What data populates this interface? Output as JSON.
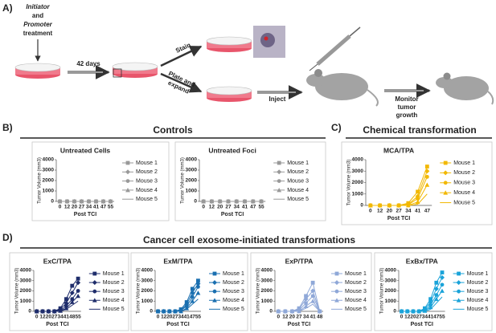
{
  "panel_a": {
    "label": "A)",
    "treatment": [
      "Initiator",
      "and",
      "Promoter",
      "treatment"
    ],
    "days": "42 days",
    "stain": "Stain",
    "plate": [
      "Plate and",
      "expand"
    ],
    "inject": "Inject",
    "monitor": [
      "Monitor",
      "tumor",
      "growth"
    ]
  },
  "panels": [
    {
      "label": "B)",
      "heading": "Controls"
    },
    {
      "label": "C)",
      "heading": "Chemical transformation"
    },
    {
      "label": "D)",
      "heading": "Cancer cell exosome-initiated transformations"
    }
  ],
  "chart_data": [
    {
      "type": "line",
      "title": "Untreated Cells",
      "x_label": "Post TCI",
      "y_label": "Tumor Volume (mm3)",
      "categories": [
        0,
        12,
        20,
        27,
        34,
        41,
        47,
        55
      ],
      "ylim": [
        0,
        4000
      ],
      "yticks": [
        0,
        1000,
        2000,
        3000,
        4000
      ],
      "series": [
        {
          "name": "Mouse 1",
          "color": "#999999",
          "values": [
            0,
            0,
            0,
            0,
            0,
            0,
            0,
            0
          ]
        },
        {
          "name": "Mouse 2",
          "color": "#999999",
          "values": [
            0,
            0,
            0,
            0,
            0,
            0,
            0,
            0
          ]
        },
        {
          "name": "Mouse 3",
          "color": "#999999",
          "values": [
            0,
            0,
            0,
            0,
            0,
            0,
            0,
            0
          ]
        },
        {
          "name": "Mouse 4",
          "color": "#999999",
          "values": [
            0,
            0,
            0,
            0,
            0,
            0,
            0,
            0
          ]
        },
        {
          "name": "Mouse 5",
          "color": "#999999",
          "values": [
            0,
            0,
            0,
            0,
            0,
            0,
            0,
            0
          ]
        }
      ]
    },
    {
      "type": "line",
      "title": "Untreated Foci",
      "x_label": "Post TCI",
      "y_label": "Tumor Volume (mm3)",
      "categories": [
        0,
        12,
        20,
        27,
        34,
        41,
        47,
        55
      ],
      "ylim": [
        0,
        4000
      ],
      "yticks": [
        0,
        1000,
        2000,
        3000,
        4000
      ],
      "series": [
        {
          "name": "Mouse 1",
          "color": "#999999",
          "values": [
            0,
            0,
            0,
            0,
            0,
            0,
            0,
            0
          ]
        },
        {
          "name": "Mouse 2",
          "color": "#999999",
          "values": [
            0,
            0,
            0,
            0,
            0,
            0,
            0,
            0
          ]
        },
        {
          "name": "Mouse 3",
          "color": "#999999",
          "values": [
            0,
            0,
            0,
            0,
            0,
            0,
            0,
            0
          ]
        },
        {
          "name": "Mouse 4",
          "color": "#999999",
          "values": [
            0,
            0,
            0,
            0,
            0,
            0,
            0,
            0
          ]
        },
        {
          "name": "Mouse 5",
          "color": "#999999",
          "values": [
            0,
            0,
            0,
            0,
            0,
            0,
            0,
            0
          ]
        }
      ]
    },
    {
      "type": "line",
      "title": "MCA/TPA",
      "x_label": "Post TCI",
      "y_label": "Tumor Volume (mm3)",
      "categories": [
        0,
        12,
        20,
        27,
        34,
        41,
        47
      ],
      "ylim": [
        0,
        4000
      ],
      "yticks": [
        0,
        1000,
        2000,
        3000,
        4000
      ],
      "series": [
        {
          "name": "Mouse 1",
          "color": "#f2b800",
          "values": [
            0,
            0,
            0,
            0,
            200,
            1200,
            3400
          ]
        },
        {
          "name": "Mouse 2",
          "color": "#f2b800",
          "values": [
            0,
            0,
            0,
            0,
            100,
            800,
            3000
          ]
        },
        {
          "name": "Mouse 3",
          "color": "#f2b800",
          "values": [
            0,
            0,
            0,
            0,
            50,
            600,
            2500
          ]
        },
        {
          "name": "Mouse 4",
          "color": "#f2b800",
          "values": [
            0,
            0,
            0,
            0,
            0,
            300,
            1800
          ]
        },
        {
          "name": "Mouse 5",
          "color": "#f2b800",
          "values": [
            0,
            0,
            0,
            0,
            0,
            100,
            1000
          ]
        }
      ]
    },
    {
      "type": "line",
      "title": "ExC/TPA",
      "x_label": "Post TCI",
      "y_label": "Tumor Volume (mm3)",
      "categories": [
        0,
        12,
        20,
        27,
        34,
        41,
        48,
        55
      ],
      "ylim": [
        0,
        4000
      ],
      "yticks": [
        0,
        1000,
        2000,
        3000,
        4000
      ],
      "series": [
        {
          "name": "Mouse 1",
          "color": "#1f2d6b",
          "values": [
            0,
            0,
            0,
            0,
            300,
            1200,
            2500,
            3200
          ]
        },
        {
          "name": "Mouse 2",
          "color": "#1f2d6b",
          "values": [
            0,
            0,
            0,
            0,
            200,
            800,
            1800,
            2800
          ]
        },
        {
          "name": "Mouse 3",
          "color": "#1f2d6b",
          "values": [
            0,
            0,
            0,
            0,
            100,
            500,
            1200,
            2000
          ]
        },
        {
          "name": "Mouse 4",
          "color": "#1f2d6b",
          "values": [
            0,
            0,
            0,
            0,
            50,
            300,
            900,
            1500
          ]
        },
        {
          "name": "Mouse 5",
          "color": "#1f2d6b",
          "values": [
            0,
            0,
            0,
            0,
            0,
            200,
            600,
            1000
          ]
        }
      ]
    },
    {
      "type": "line",
      "title": "ExM/TPA",
      "x_label": "Post TCI",
      "y_label": "Tumor Volume (mm3)",
      "categories": [
        0,
        12,
        20,
        27,
        34,
        41,
        47,
        55
      ],
      "ylim": [
        0,
        4000
      ],
      "yticks": [
        0,
        1000,
        2000,
        3000,
        4000
      ],
      "series": [
        {
          "name": "Mouse 1",
          "color": "#1a6fb0",
          "values": [
            0,
            0,
            0,
            0,
            200,
            900,
            2200,
            3000
          ]
        },
        {
          "name": "Mouse 2",
          "color": "#1a6fb0",
          "values": [
            0,
            0,
            0,
            0,
            100,
            700,
            1800,
            2700
          ]
        },
        {
          "name": "Mouse 3",
          "color": "#1a6fb0",
          "values": [
            0,
            0,
            0,
            0,
            100,
            500,
            1400,
            2400
          ]
        },
        {
          "name": "Mouse 4",
          "color": "#1a6fb0",
          "values": [
            0,
            0,
            0,
            0,
            0,
            300,
            1000,
            1800
          ]
        },
        {
          "name": "Mouse 5",
          "color": "#1a6fb0",
          "values": [
            0,
            0,
            0,
            0,
            0,
            200,
            700,
            1200
          ]
        }
      ]
    },
    {
      "type": "line",
      "title": "ExP/TPA",
      "x_label": "Post TCI",
      "y_label": "Tumor Volume (mm3)",
      "categories": [
        0,
        12,
        20,
        27,
        34,
        41,
        48
      ],
      "ylim": [
        0,
        4000
      ],
      "yticks": [
        0,
        1000,
        2000,
        3000,
        4000
      ],
      "series": [
        {
          "name": "Mouse 1",
          "color": "#8fa8d8",
          "values": [
            0,
            0,
            0,
            300,
            1500,
            2800,
            0
          ]
        },
        {
          "name": "Mouse 2",
          "color": "#8fa8d8",
          "values": [
            0,
            0,
            0,
            200,
            1200,
            2000,
            0
          ]
        },
        {
          "name": "Mouse 3",
          "color": "#8fa8d8",
          "values": [
            0,
            0,
            0,
            100,
            800,
            1500,
            0
          ]
        },
        {
          "name": "Mouse 4",
          "color": "#8fa8d8",
          "values": [
            0,
            0,
            0,
            0,
            500,
            1000,
            0
          ]
        },
        {
          "name": "Mouse 5",
          "color": "#8fa8d8",
          "values": [
            0,
            0,
            0,
            0,
            300,
            700,
            0
          ]
        }
      ]
    },
    {
      "type": "line",
      "title": "ExBx/TPA",
      "x_label": "Post TCI",
      "y_label": "Tumor Volume (mm3)",
      "categories": [
        0,
        12,
        20,
        27,
        34,
        41,
        47,
        55
      ],
      "ylim": [
        0,
        4000
      ],
      "yticks": [
        0,
        1000,
        2000,
        3000,
        4000
      ],
      "series": [
        {
          "name": "Mouse 1",
          "color": "#1aa3d9",
          "values": [
            0,
            0,
            0,
            0,
            300,
            1200,
            2800,
            3800
          ]
        },
        {
          "name": "Mouse 2",
          "color": "#1aa3d9",
          "values": [
            0,
            0,
            0,
            0,
            200,
            900,
            2200,
            3300
          ]
        },
        {
          "name": "Mouse 3",
          "color": "#1aa3d9",
          "values": [
            0,
            0,
            0,
            0,
            100,
            600,
            1600,
            2600
          ]
        },
        {
          "name": "Mouse 4",
          "color": "#1aa3d9",
          "values": [
            0,
            0,
            0,
            0,
            50,
            400,
            1200,
            2000
          ]
        },
        {
          "name": "Mouse 5",
          "color": "#1aa3d9",
          "values": [
            0,
            0,
            0,
            0,
            0,
            200,
            800,
            1400
          ]
        }
      ]
    }
  ]
}
